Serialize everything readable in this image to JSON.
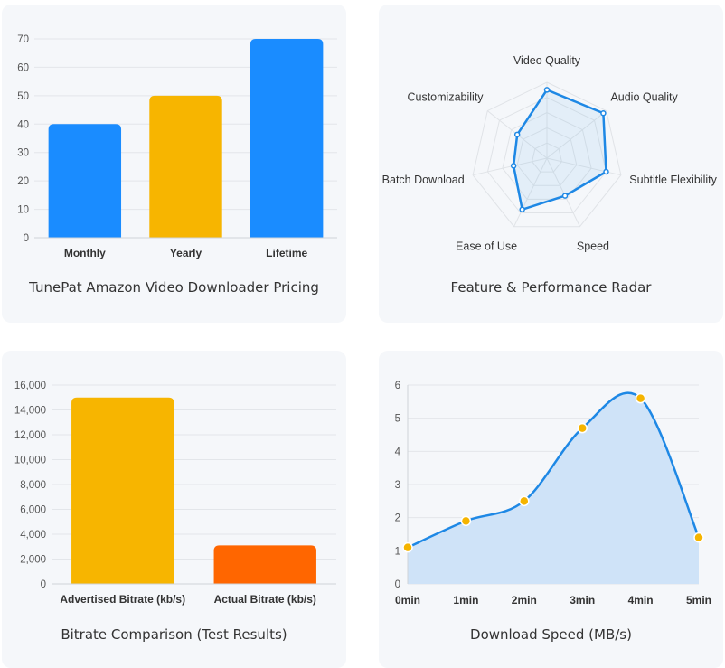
{
  "colors": {
    "blue": "#1a8cff",
    "yellow": "#f7b500",
    "orange": "#ff6600",
    "line": "#1e88e5",
    "area": "#cfe3f8",
    "point": "#f5b400",
    "grid": "#e3e6ea"
  },
  "chart_data": [
    {
      "type": "bar",
      "title": "TunePat Amazon Video Downloader Pricing",
      "categories": [
        "Monthly",
        "Yearly",
        "Lifetime"
      ],
      "values": [
        40,
        50,
        70
      ],
      "colors": [
        "#1a8cff",
        "#f7b500",
        "#1a8cff"
      ],
      "ylim": [
        0,
        70
      ],
      "yticks": [
        "0",
        "10",
        "20",
        "30",
        "40",
        "50",
        "60",
        "70"
      ],
      "grid": true
    },
    {
      "type": "radar",
      "title": "Feature & Performance Radar",
      "categories": [
        "Video Quality",
        "Audio Quality",
        "Subtitle Flexibility",
        "Speed",
        "Ease of Use",
        "Batch Download",
        "Customizability"
      ],
      "values": [
        9,
        9.5,
        8,
        5.5,
        7.5,
        4.5,
        5
      ],
      "rmax": 10,
      "grid": true
    },
    {
      "type": "bar",
      "title": "Bitrate Comparison (Test Results)",
      "categories": [
        "Advertised Bitrate (kb/s)",
        "Actual Bitrate (kb/s)"
      ],
      "values": [
        15000,
        3100
      ],
      "colors": [
        "#f7b500",
        "#ff6600"
      ],
      "ylim": [
        0,
        16000
      ],
      "yticks": [
        "0",
        "2,000",
        "4,000",
        "6,000",
        "8,000",
        "10,000",
        "12,000",
        "14,000",
        "16,000"
      ],
      "grid": true
    },
    {
      "type": "area",
      "title": "Download Speed (MB/s)",
      "x": [
        "0min",
        "1min",
        "2min",
        "3min",
        "4min",
        "5min"
      ],
      "values": [
        1.1,
        1.9,
        2.5,
        4.7,
        5.6,
        1.4
      ],
      "ylim": [
        0,
        6
      ],
      "yticks": [
        "0",
        "1",
        "2",
        "3",
        "4",
        "5",
        "6"
      ],
      "grid": true
    }
  ]
}
